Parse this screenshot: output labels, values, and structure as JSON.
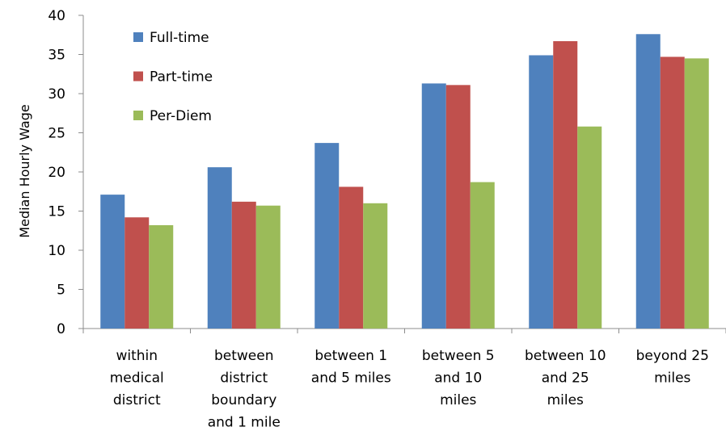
{
  "chart_data": {
    "type": "bar",
    "title": "",
    "xlabel": "",
    "ylabel": "Median Hourly Wage",
    "ylim": [
      0,
      40
    ],
    "yticks": [
      0,
      5,
      10,
      15,
      20,
      25,
      30,
      35,
      40
    ],
    "grid": false,
    "legend_position": "top-left",
    "categories": [
      [
        "within",
        "medical",
        "district"
      ],
      [
        "between",
        "district",
        "boundary",
        "and 1 mile"
      ],
      [
        "between 1",
        "and 5 miles"
      ],
      [
        "between 5",
        "and 10",
        "miles"
      ],
      [
        "between 10",
        "and 25",
        "miles"
      ],
      [
        "beyond 25",
        "miles"
      ]
    ],
    "series": [
      {
        "name": "Full-time",
        "color": "#4f81bd",
        "values": [
          17.1,
          20.6,
          23.7,
          31.3,
          34.9,
          37.6
        ]
      },
      {
        "name": "Part-time",
        "color": "#c0504d",
        "values": [
          14.2,
          16.2,
          18.1,
          31.1,
          36.7,
          34.7
        ]
      },
      {
        "name": "Per-Diem",
        "color": "#9bbb59",
        "values": [
          13.2,
          15.7,
          16.0,
          18.7,
          25.8,
          34.5
        ]
      }
    ]
  }
}
